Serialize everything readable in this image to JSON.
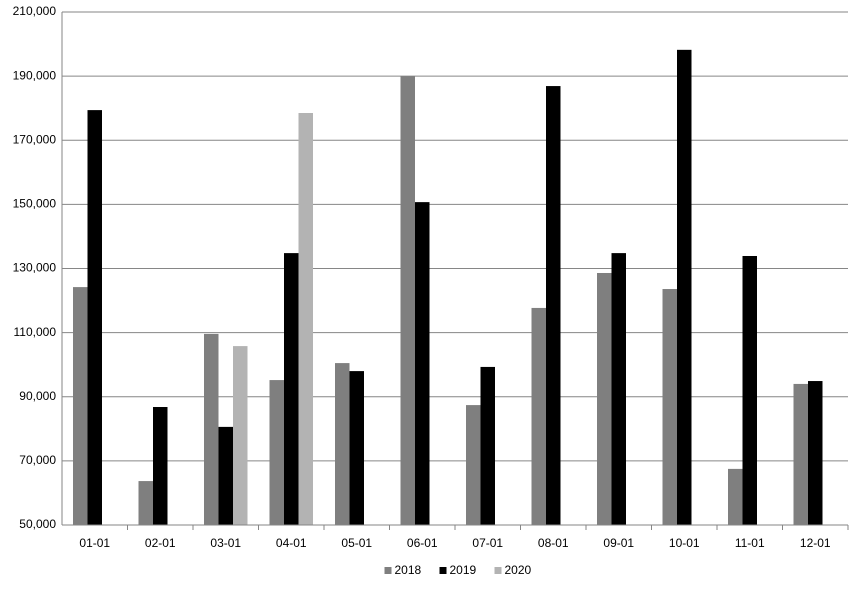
{
  "chart_data": {
    "type": "bar",
    "categories": [
      "01-01",
      "02-01",
      "03-01",
      "04-01",
      "05-01",
      "06-01",
      "07-01",
      "08-01",
      "09-01",
      "10-01",
      "11-01",
      "12-01"
    ],
    "series": [
      {
        "name": "2018",
        "color": "#7f7f7f",
        "values": [
          124200,
          63700,
          109600,
          95200,
          100500,
          190000,
          87400,
          117700,
          128600,
          123600,
          67500,
          94000
        ]
      },
      {
        "name": "2019",
        "color": "#000000",
        "values": [
          179400,
          86800,
          80600,
          134800,
          98000,
          150700,
          99300,
          186900,
          134800,
          198200,
          133900,
          94900
        ]
      },
      {
        "name": "2020",
        "color": "#b3b3b3",
        "values": [
          null,
          null,
          105800,
          178500,
          null,
          null,
          null,
          null,
          null,
          null,
          null,
          null
        ]
      }
    ],
    "ylim": [
      50000,
      210000
    ],
    "yticks": [
      {
        "value": 50000,
        "label": "50,000"
      },
      {
        "value": 70000,
        "label": "70,000"
      },
      {
        "value": 90000,
        "label": "90,000"
      },
      {
        "value": 110000,
        "label": "110,000"
      },
      {
        "value": 130000,
        "label": "130,000"
      },
      {
        "value": 150000,
        "label": "150,000"
      },
      {
        "value": 170000,
        "label": "170,000"
      },
      {
        "value": 190000,
        "label": "190,000"
      },
      {
        "value": 210000,
        "label": "210,000"
      }
    ],
    "grid": true,
    "legend": "bottom"
  }
}
